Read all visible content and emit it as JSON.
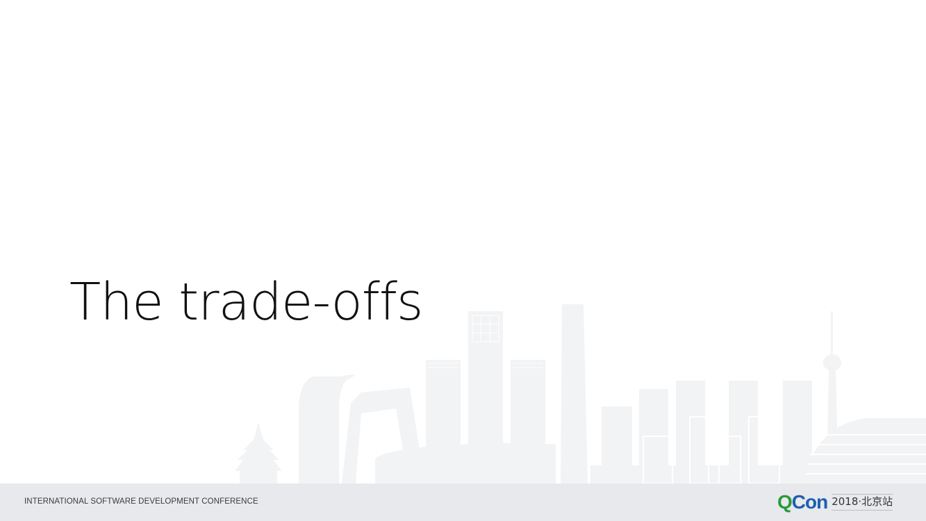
{
  "slide": {
    "title": "The trade-offs"
  },
  "footer": {
    "conference_name": "INTERNATIONAL SOFTWARE DEVELOPMENT CONFERENCE",
    "logo": {
      "q": "Q",
      "con": "Con",
      "edition": "2018·北京站"
    }
  },
  "colors": {
    "footer_background": "#e7e9ec",
    "skyline": "#f1f2f3",
    "logo_green": "#2b9a3a",
    "logo_blue": "#1d5fb0"
  },
  "icons": {
    "background": "beijing-skyline-illustration"
  }
}
